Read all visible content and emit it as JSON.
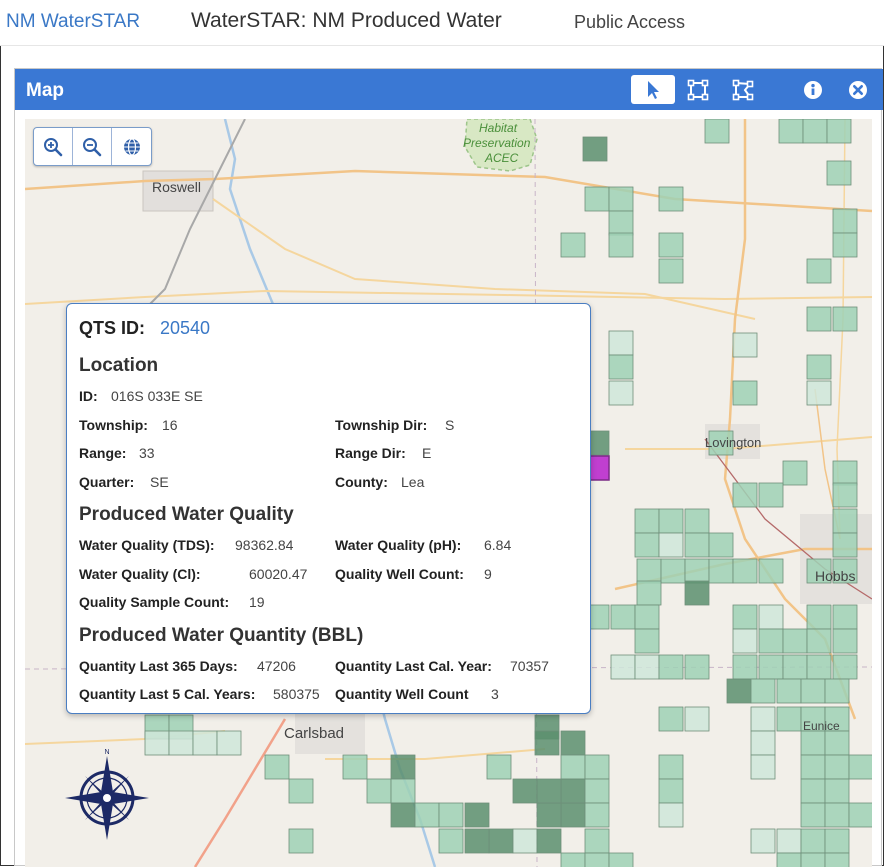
{
  "header": {
    "brand": "NM WaterSTAR",
    "title": "WaterSTAR: NM Produced Water",
    "access": "Public Access"
  },
  "panel": {
    "title": "Map",
    "tools": [
      "select-arrow-icon",
      "rectangle-select-icon",
      "polygon-select-icon",
      "info-icon",
      "close-icon"
    ]
  },
  "map": {
    "zoom_controls": [
      "zoom-in-icon",
      "zoom-out-icon",
      "globe-icon"
    ],
    "labels": {
      "roswell": "Roswell",
      "habitat": "Habitat",
      "preservation": "Preservation",
      "acec": "ACEC",
      "lovington": "Lovington",
      "hobbs": "Hobbs",
      "eunice": "Eunice",
      "carlsbad": "Carlsbad",
      "compass_n": "N"
    },
    "colors": {
      "cell_light": "#cfe6d9",
      "cell_mid": "#9fd1b5",
      "cell_dark": "#5c8f6f",
      "selected": "#c03fd0",
      "background": "#f2efe9"
    }
  },
  "popup": {
    "qts_label": "QTS ID:",
    "qts_value": "20540",
    "location": {
      "heading": "Location",
      "id_label": "ID:",
      "id_value": "016S 033E SE",
      "township_label": "Township:",
      "township_value": "16",
      "township_dir_label": "Township Dir:",
      "township_dir_value": "S",
      "range_label": "Range:",
      "range_value": "33",
      "range_dir_label": "Range Dir:",
      "range_dir_value": "E",
      "quarter_label": "Quarter:",
      "quarter_value": "SE",
      "county_label": "County:",
      "county_value": "Lea"
    },
    "quality": {
      "heading": "Produced Water Quality",
      "tds_label": "Water Quality (TDS):",
      "tds_value": "98362.84",
      "ph_label": "Water Quality (pH):",
      "ph_value": "6.84",
      "cl_label": "Water Quality (Cl):",
      "cl_value": "60020.47",
      "well_count_label": "Quality Well Count:",
      "well_count_value": "9",
      "sample_count_label": "Quality Sample Count:",
      "sample_count_value": "19"
    },
    "quantity": {
      "heading": "Produced Water Quantity (BBL)",
      "last365_label": "Quantity Last 365 Days:",
      "last365_value": "47206",
      "last_cal_label": "Quantity Last Cal. Year:",
      "last_cal_value": "70357",
      "last5_label": "Quantity Last 5 Cal. Years:",
      "last5_value": "580375",
      "well_count_label": "Quantity Well Count",
      "well_count_value": "3"
    }
  }
}
